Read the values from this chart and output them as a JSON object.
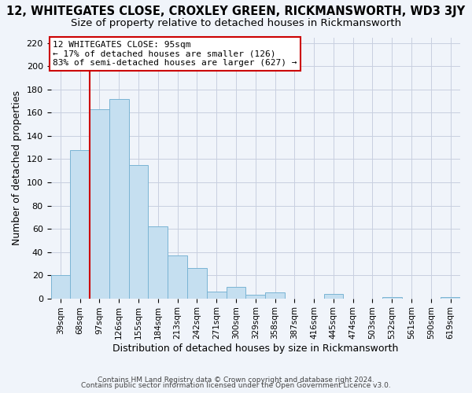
{
  "title": "12, WHITEGATES CLOSE, CROXLEY GREEN, RICKMANSWORTH, WD3 3JY",
  "subtitle": "Size of property relative to detached houses in Rickmansworth",
  "xlabel": "Distribution of detached houses by size in Rickmansworth",
  "ylabel": "Number of detached properties",
  "bar_labels": [
    "39sqm",
    "68sqm",
    "97sqm",
    "126sqm",
    "155sqm",
    "184sqm",
    "213sqm",
    "242sqm",
    "271sqm",
    "300sqm",
    "329sqm",
    "358sqm",
    "387sqm",
    "416sqm",
    "445sqm",
    "474sqm",
    "503sqm",
    "532sqm",
    "561sqm",
    "590sqm",
    "619sqm"
  ],
  "bar_values": [
    20,
    128,
    163,
    172,
    115,
    62,
    37,
    26,
    6,
    10,
    3,
    5,
    0,
    0,
    4,
    0,
    0,
    1,
    0,
    0,
    1
  ],
  "bar_color": "#c5dff0",
  "bar_edge_color": "#7ab4d4",
  "vline_color": "#cc0000",
  "annotation_title": "12 WHITEGATES CLOSE: 95sqm",
  "annotation_line1": "← 17% of detached houses are smaller (126)",
  "annotation_line2": "83% of semi-detached houses are larger (627) →",
  "box_edge_color": "#cc0000",
  "ylim": [
    0,
    225
  ],
  "yticks": [
    0,
    20,
    40,
    60,
    80,
    100,
    120,
    140,
    160,
    180,
    200,
    220
  ],
  "footer1": "Contains HM Land Registry data © Crown copyright and database right 2024.",
  "footer2": "Contains public sector information licensed under the Open Government Licence v3.0.",
  "bg_color": "#f0f4fa",
  "grid_color": "#c8cfe0",
  "title_fontsize": 10.5,
  "subtitle_fontsize": 9.5
}
